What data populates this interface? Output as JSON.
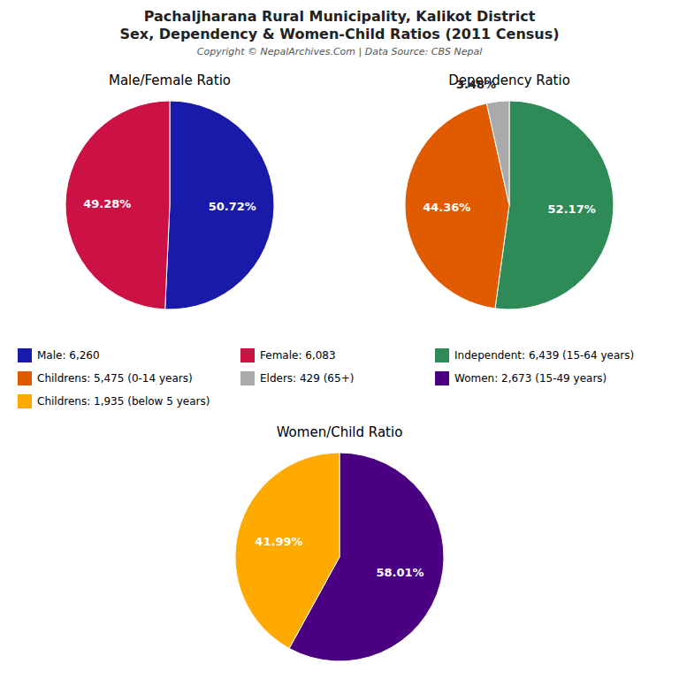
{
  "title": "Pachaljharana Rural Municipality, Kalikot District",
  "subtitle": "Sex, Dependency & Women-Child Ratios (2011 Census)",
  "annotations": [
    "Copyright © NepalArchives.Com | Data Source: CBS Nepal"
  ],
  "chart_data": [
    {
      "type": "pie",
      "title": "Male/Female Ratio",
      "categories": [
        "Male: 6,260",
        "Female: 6,083"
      ],
      "values": [
        50.72,
        49.28
      ],
      "value_labels": [
        "50.72%",
        "49.28%"
      ],
      "colors": [
        "#1a1aaa",
        "#cc1144"
      ],
      "data_labels": true
    },
    {
      "type": "pie",
      "title": "Dependency Ratio",
      "categories": [
        "Independent: 6,439 (15-64 years)",
        "Childrens: 5,475 (0-14 years)",
        "Elders: 429 (65+)"
      ],
      "values": [
        52.17,
        44.36,
        3.48
      ],
      "value_labels": [
        "52.17%",
        "44.36%",
        "3.48%"
      ],
      "colors": [
        "#2e8b57",
        "#e05a00",
        "#aaaaaa"
      ],
      "data_labels": true
    },
    {
      "type": "pie",
      "title": "Women/Child Ratio",
      "categories": [
        "Women: 2,673 (15-49 years)",
        "Childrens: 1,935 (below 5 years)"
      ],
      "values": [
        58.01,
        41.99
      ],
      "value_labels": [
        "58.01%",
        "41.99%"
      ],
      "colors": [
        "#4b0082",
        "#ffaa00"
      ],
      "data_labels": true
    }
  ]
}
